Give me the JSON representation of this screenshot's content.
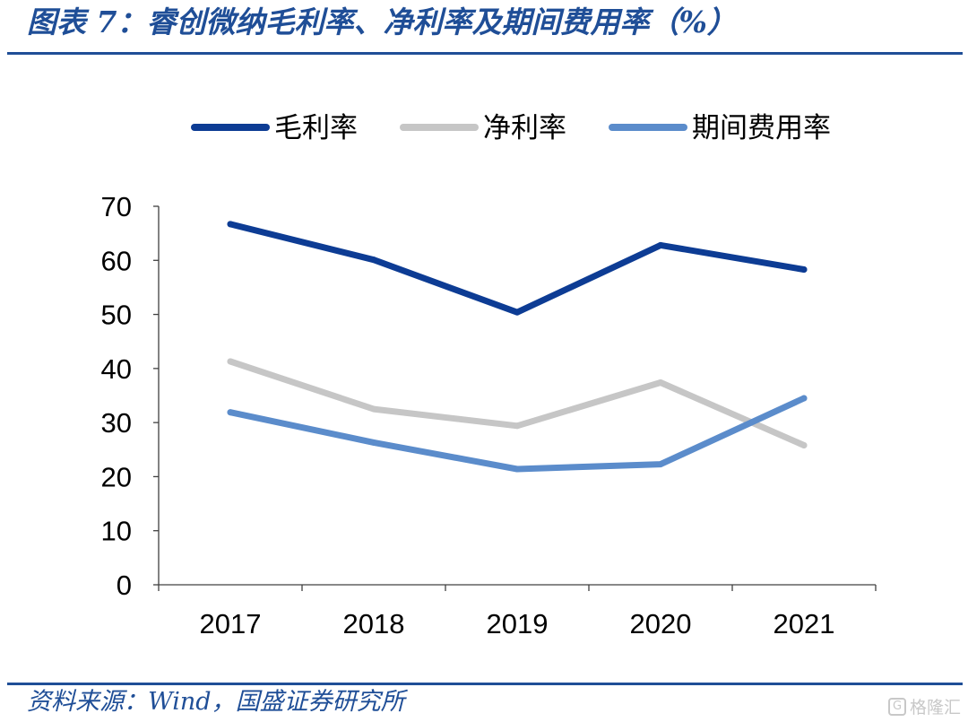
{
  "header": {
    "title": "图表 7：睿创微纳毛利率、净利率及期间费用率（%）"
  },
  "footer": {
    "source": "资料来源：Wind，国盛证券研究所",
    "watermark": "格隆汇",
    "watermark_icon": "G"
  },
  "colors": {
    "title": "#1f4e97",
    "axis": "#404040"
  },
  "chart_data": {
    "type": "line",
    "x": [
      "2017",
      "2018",
      "2019",
      "2020",
      "2021"
    ],
    "series": [
      {
        "name": "毛利率",
        "color": "#0d3c94",
        "values": [
          66.7,
          60.1,
          50.4,
          62.8,
          58.3
        ]
      },
      {
        "name": "净利率",
        "color": "#c6c6c6",
        "values": [
          41.3,
          32.5,
          29.4,
          37.4,
          25.8
        ]
      },
      {
        "name": "期间费用率",
        "color": "#5b8ccb",
        "values": [
          31.9,
          26.3,
          21.4,
          22.3,
          34.5
        ]
      }
    ],
    "ylim": [
      0,
      70
    ],
    "yticks": [
      0,
      10,
      20,
      30,
      40,
      50,
      60,
      70
    ],
    "grid": false,
    "legend": "top"
  }
}
